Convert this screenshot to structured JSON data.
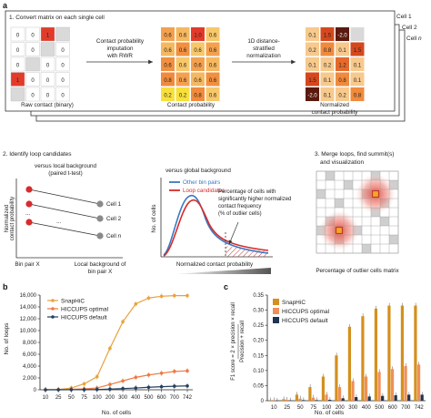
{
  "panel_a": {
    "letter": "a",
    "step1_title": "1. Convert matrix on each single cell",
    "cell_stack": [
      "Cell 1",
      "Cell 2",
      "Cell",
      "n"
    ],
    "raw_caption": "Raw contact (binary)",
    "raw_matrix": [
      [
        "0",
        "0",
        "1",
        ""
      ],
      [
        "0",
        "0",
        "",
        "0"
      ],
      [
        "0",
        "",
        "0",
        "0"
      ],
      [
        "1",
        "0",
        "0",
        "0"
      ],
      [
        "",
        "0",
        "0",
        "0"
      ]
    ],
    "arrow1": [
      "Contact probability",
      "imputation",
      "with RWR"
    ],
    "prob_caption": "Contact probability",
    "prob_matrix": [
      [
        "0.6",
        "0.6",
        "1.0",
        "0.6"
      ],
      [
        "0.6",
        "0.6",
        "0.6",
        "0.6"
      ],
      [
        "0.6",
        "0.6",
        "0.6",
        "0.6"
      ],
      [
        "0.8",
        "0.6",
        "0.6",
        "0.6"
      ],
      [
        "0.2",
        "0.2",
        "0.8",
        "0.6"
      ]
    ],
    "arrow2": [
      "1D distance-",
      "stratified",
      "normalization"
    ],
    "norm_caption": [
      "Normalized",
      "contact probability"
    ],
    "norm_matrix": [
      [
        "0.1",
        "1.5",
        "-2.0",
        ""
      ],
      [
        "0.2",
        "0.8",
        "0.1",
        "1.5"
      ],
      [
        "0.1",
        "0.2",
        "1.2",
        "0.1"
      ],
      [
        "1.5",
        "0.1",
        "0.8",
        "0.1"
      ],
      [
        "-2.0",
        "0.1",
        "0.2",
        "0.8"
      ]
    ],
    "step2_title": "2. Identify loop candidates",
    "local_bg": [
      "versus local background",
      "(paired t-test)"
    ],
    "local_ylabel": [
      "Normalized",
      "contact probability"
    ],
    "local_cells": [
      "Cell 1",
      "Cell 2",
      "Cell n"
    ],
    "local_dots": "...",
    "local_x1": "Bin pair X",
    "local_x2": [
      "Local background of",
      "bin pair X"
    ],
    "global_bg": "versus global background",
    "legend_other": "Other bin pairs",
    "legend_loop": "Loop candidates",
    "global_ylabel": "No. of cells",
    "global_xlabel": "Normalized contact probability",
    "global_annot": [
      "Percentage of cells with",
      "significantly higher normalized",
      "contact frequency",
      "(% of outlier cells)"
    ],
    "step3_title": [
      "3. Merge loops, find summit(s)",
      "and visualization"
    ],
    "outlier_caption": "Percentage of outlier cells matrix"
  },
  "panel_b": {
    "letter": "b",
    "chart_data": {
      "type": "line",
      "x": [
        "10",
        "25",
        "50",
        "75",
        "100",
        "200",
        "300",
        "400",
        "500",
        "600",
        "700",
        "742"
      ],
      "ylabel": "No. of loops",
      "xlabel": "No. of cells",
      "ylim": [
        0,
        16000
      ],
      "yticks": [
        "0",
        "2,000",
        "4,000",
        "6,000",
        "8,000",
        "10,000",
        "12,000",
        "14,000",
        "16,000"
      ],
      "grid": false,
      "legend": "top-left",
      "series": [
        {
          "name": "SnapHiC",
          "color": "#e8a23c",
          "values": [
            0,
            50,
            300,
            1000,
            2200,
            7000,
            11500,
            14500,
            15500,
            15800,
            15900,
            15900
          ]
        },
        {
          "name": "HICCUPS optimal",
          "color": "#ee7a43",
          "values": [
            0,
            20,
            80,
            150,
            300,
            900,
            1500,
            2100,
            2500,
            2800,
            3100,
            3200
          ]
        },
        {
          "name": "HICCUPS default",
          "color": "#24405d",
          "values": [
            0,
            0,
            10,
            20,
            50,
            120,
            200,
            300,
            420,
            520,
            600,
            650
          ]
        }
      ]
    }
  },
  "panel_c": {
    "letter": "c",
    "chart_data": {
      "type": "bar",
      "categories": [
        "10",
        "25",
        "50",
        "75",
        "100",
        "200",
        "300",
        "400",
        "500",
        "600",
        "700",
        "742"
      ],
      "ylabel": [
        "F1 score = 2 × precision × recall",
        "Precision + recall"
      ],
      "xlabel": "No. of cells",
      "ylim": [
        0,
        0.35
      ],
      "yticks": [
        "0",
        "0.05",
        "0.10",
        "0.15",
        "0.20",
        "0.25",
        "0.30",
        "0.35"
      ],
      "grid": false,
      "legend": "top-left",
      "series": [
        {
          "name": "SnapHiC",
          "color": "#d4901e",
          "values": [
            0.001,
            0.005,
            0.02,
            0.045,
            0.08,
            0.15,
            0.245,
            0.28,
            0.305,
            0.315,
            0.315,
            0.315
          ]
        },
        {
          "name": "HICCUPS optimal",
          "color": "#f08f58",
          "values": [
            0.002,
            0.003,
            0.007,
            0.01,
            0.02,
            0.045,
            0.065,
            0.08,
            0.095,
            0.105,
            0.115,
            0.12
          ]
        },
        {
          "name": "HICCUPS default",
          "color": "#1f3550",
          "values": [
            0.0,
            0.001,
            0.002,
            0.002,
            0.003,
            0.008,
            0.012,
            0.014,
            0.016,
            0.018,
            0.02,
            0.02
          ]
        }
      ]
    }
  }
}
